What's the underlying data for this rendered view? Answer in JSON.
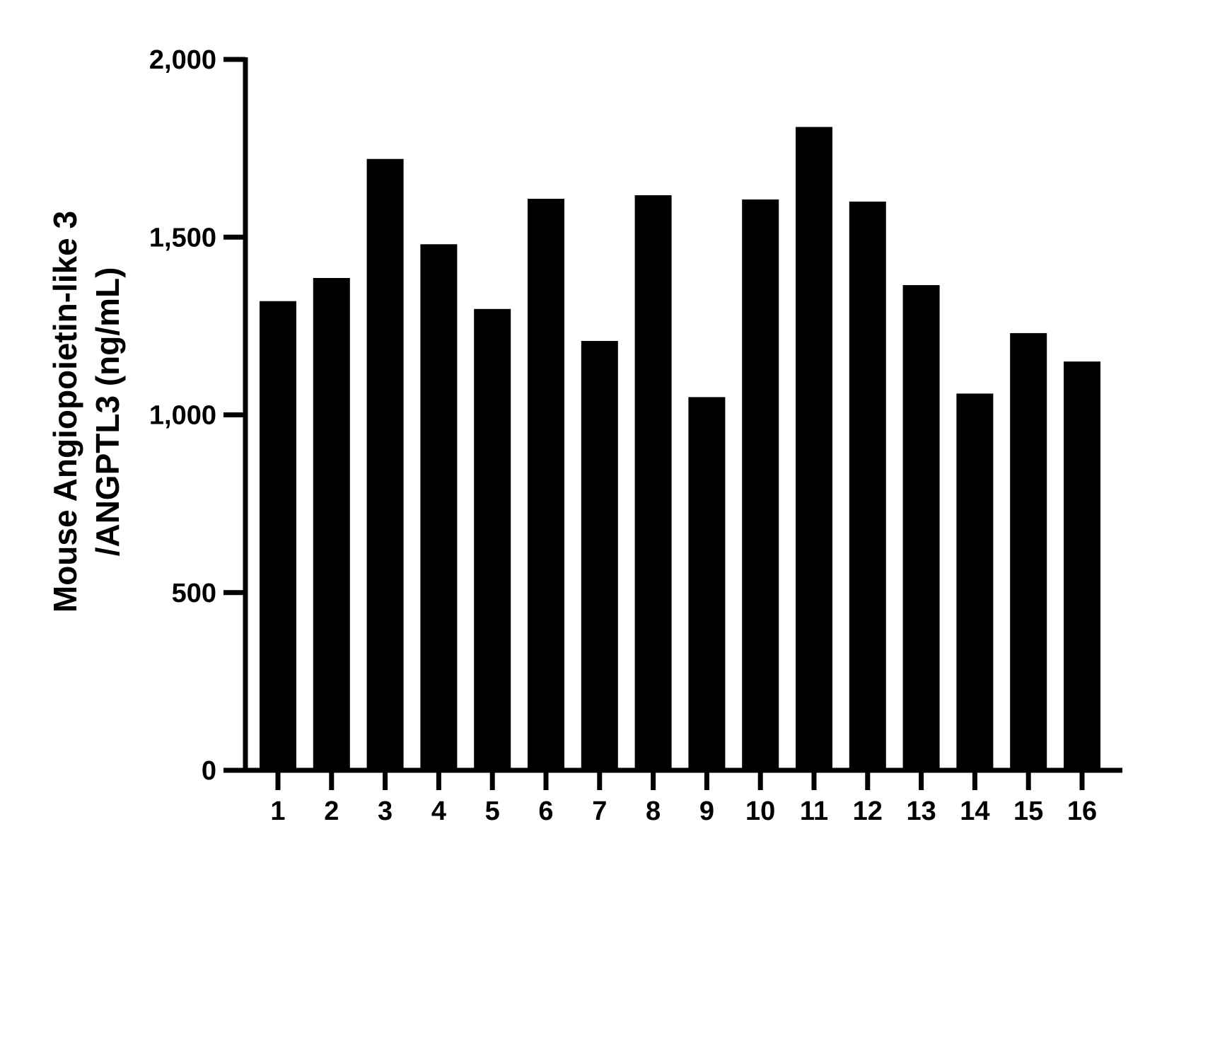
{
  "chart_data": {
    "type": "bar",
    "title": "",
    "xlabel": "",
    "ylabel_lines": [
      "Mouse Angiopoietin-like 3",
      "/ANGPTL3 (ng/mL)"
    ],
    "categories": [
      "1",
      "2",
      "3",
      "4",
      "5",
      "6",
      "7",
      "8",
      "9",
      "10",
      "11",
      "12",
      "13",
      "14",
      "15",
      "16"
    ],
    "values": [
      1320,
      1385,
      1720,
      1480,
      1298,
      1608,
      1208,
      1618,
      1050,
      1606,
      1810,
      1600,
      1365,
      1060,
      1230,
      1150
    ],
    "ylim": [
      0,
      2000
    ],
    "yticks": [
      0,
      500,
      1000,
      1500,
      2000
    ],
    "ytick_labels": [
      "0",
      "500",
      "1,000",
      "1,500",
      "2,000"
    ],
    "grid": false,
    "legend": "none",
    "bar_color": "#000000"
  }
}
